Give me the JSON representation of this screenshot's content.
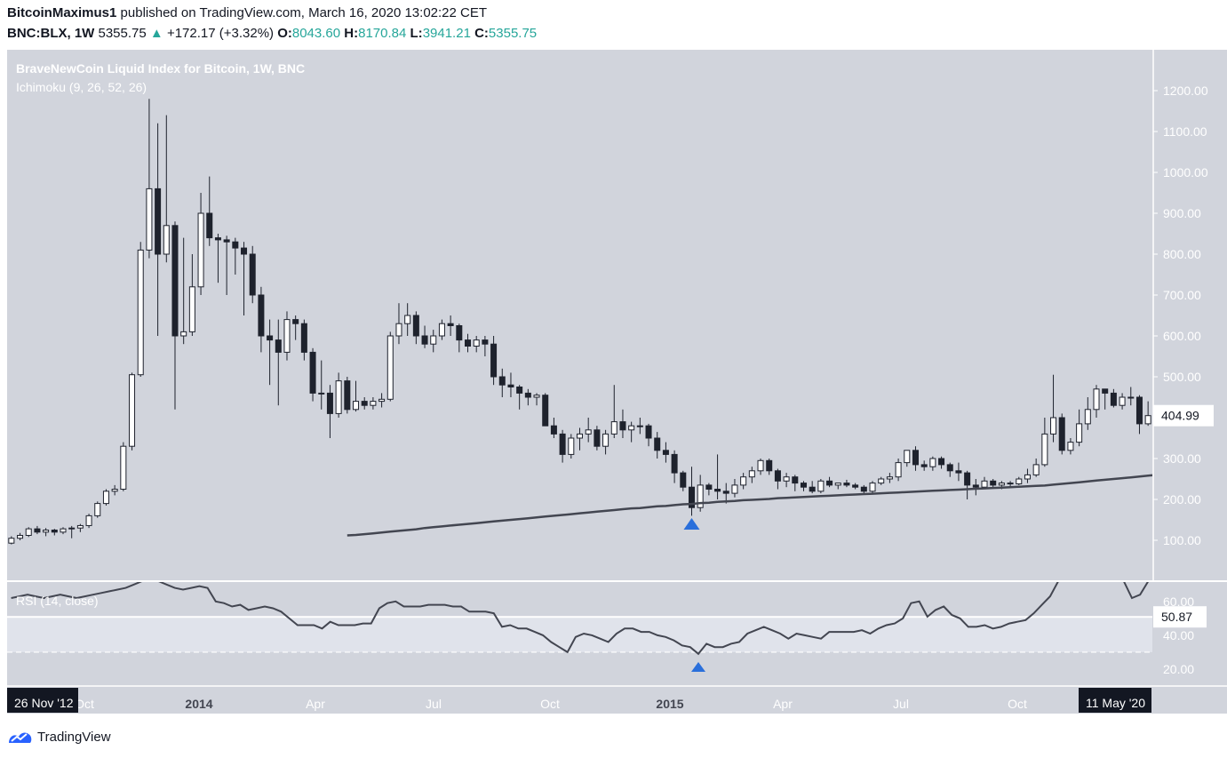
{
  "header": {
    "author": "BitcoinMaximus1",
    "published_text": "published on TradingView.com, March 16, 2020 13:02:22 CET",
    "symbol": "BNC:BLX, 1W",
    "last": "5355.75",
    "change": "+172.17 (+3.32%)",
    "o_label": "O:",
    "o_value": "8043.60",
    "h_label": "H:",
    "h_value": "8170.84",
    "l_label": "L:",
    "l_value": "3941.21",
    "c_label": "C:",
    "c_value": "5355.75"
  },
  "branding": {
    "name": "TradingView"
  },
  "colors": {
    "background": "#d1d4dc",
    "bull_body": "#ffffff",
    "bear_body": "#1e222d",
    "wick": "#1e222d",
    "line": "#434651",
    "marker": "#2a6fdb",
    "axis_text": "#ffffff",
    "header_accent": "#26a69a"
  },
  "chart_data": [
    {
      "type": "candlestick",
      "title": "BraveNewCoin Liquid Index for Bitcoin, 1W, BNC",
      "indicator_label": "Ichimoku (9, 26, 52, 26)",
      "ylim": [
        0,
        1300
      ],
      "y_ticks": [
        100,
        200,
        300,
        400,
        500,
        600,
        700,
        800,
        900,
        1000,
        1100,
        1200
      ],
      "y_tick_labels": [
        "100.00",
        "200.00",
        "300.00",
        "400.00",
        "500.00",
        "600.00",
        "700.00",
        "800.00",
        "900.00",
        "1000.00",
        "1100.00",
        "1200.00"
      ],
      "price_label": "404.99",
      "price_value": 404.99,
      "x_range": [
        "26 Nov '12",
        "11 May '20"
      ],
      "x_tick_labels": [
        "Oct",
        "2014",
        "Apr",
        "Jul",
        "Oct",
        "2015",
        "Apr",
        "Jul",
        "Oct"
      ],
      "x_bold_ticks": [
        "2014",
        "2015"
      ],
      "x_start_label": "26 Nov '12",
      "x_end_label": "11 May '20",
      "candles": [
        [
          93,
          110,
          90,
          105
        ],
        [
          105,
          118,
          100,
          112
        ],
        [
          112,
          132,
          108,
          128
        ],
        [
          128,
          135,
          115,
          120
        ],
        [
          120,
          130,
          110,
          125
        ],
        [
          125,
          128,
          112,
          120
        ],
        [
          120,
          132,
          115,
          128
        ],
        [
          128,
          135,
          105,
          130
        ],
        [
          130,
          140,
          120,
          136
        ],
        [
          136,
          165,
          130,
          160
        ],
        [
          160,
          195,
          155,
          190
        ],
        [
          190,
          225,
          185,
          220
        ],
        [
          220,
          235,
          210,
          225
        ],
        [
          225,
          340,
          220,
          330
        ],
        [
          330,
          510,
          320,
          505
        ],
        [
          505,
          830,
          500,
          810
        ],
        [
          810,
          1180,
          790,
          960
        ],
        [
          960,
          1120,
          600,
          800
        ],
        [
          800,
          1140,
          780,
          870
        ],
        [
          870,
          880,
          420,
          600
        ],
        [
          600,
          840,
          580,
          610
        ],
        [
          610,
          800,
          600,
          720
        ],
        [
          720,
          950,
          700,
          900
        ],
        [
          900,
          990,
          820,
          840
        ],
        [
          840,
          850,
          730,
          835
        ],
        [
          835,
          845,
          700,
          830
        ],
        [
          830,
          840,
          750,
          815
        ],
        [
          815,
          830,
          650,
          800
        ],
        [
          800,
          820,
          680,
          700
        ],
        [
          700,
          720,
          560,
          600
        ],
        [
          600,
          640,
          480,
          590
        ],
        [
          590,
          640,
          430,
          560
        ],
        [
          560,
          660,
          540,
          640
        ],
        [
          640,
          650,
          590,
          630
        ],
        [
          630,
          640,
          540,
          560
        ],
        [
          560,
          570,
          440,
          460
        ],
        [
          460,
          540,
          420,
          460
        ],
        [
          460,
          480,
          350,
          410
        ],
        [
          410,
          510,
          400,
          490
        ],
        [
          490,
          500,
          410,
          420
        ],
        [
          420,
          490,
          415,
          440
        ],
        [
          440,
          450,
          420,
          430
        ],
        [
          430,
          450,
          420,
          440
        ],
        [
          440,
          460,
          425,
          445
        ],
        [
          445,
          610,
          440,
          600
        ],
        [
          600,
          680,
          580,
          630
        ],
        [
          630,
          680,
          600,
          650
        ],
        [
          650,
          660,
          580,
          600
        ],
        [
          600,
          625,
          570,
          580
        ],
        [
          580,
          615,
          560,
          600
        ],
        [
          600,
          640,
          590,
          630
        ],
        [
          630,
          650,
          600,
          625
        ],
        [
          625,
          630,
          560,
          590
        ],
        [
          590,
          605,
          560,
          575
        ],
        [
          575,
          600,
          560,
          590
        ],
        [
          590,
          600,
          550,
          580
        ],
        [
          580,
          600,
          480,
          500
        ],
        [
          500,
          520,
          450,
          480
        ],
        [
          480,
          510,
          450,
          475
        ],
        [
          475,
          480,
          420,
          460
        ],
        [
          460,
          470,
          430,
          450
        ],
        [
          450,
          460,
          430,
          455
        ],
        [
          455,
          460,
          380,
          380
        ],
        [
          380,
          400,
          350,
          360
        ],
        [
          360,
          370,
          290,
          310
        ],
        [
          310,
          360,
          300,
          350
        ],
        [
          350,
          375,
          320,
          360
        ],
        [
          360,
          400,
          340,
          370
        ],
        [
          370,
          380,
          320,
          330
        ],
        [
          330,
          370,
          310,
          360
        ],
        [
          360,
          480,
          350,
          390
        ],
        [
          390,
          420,
          350,
          370
        ],
        [
          370,
          390,
          340,
          380
        ],
        [
          380,
          400,
          360,
          380
        ],
        [
          380,
          385,
          330,
          350
        ],
        [
          350,
          365,
          300,
          320
        ],
        [
          320,
          340,
          290,
          310
        ],
        [
          310,
          320,
          240,
          265
        ],
        [
          265,
          270,
          220,
          230
        ],
        [
          230,
          280,
          160,
          180
        ],
        [
          180,
          260,
          170,
          235
        ],
        [
          235,
          240,
          210,
          225
        ],
        [
          225,
          310,
          200,
          220
        ],
        [
          220,
          240,
          190,
          215
        ],
        [
          215,
          250,
          205,
          235
        ],
        [
          235,
          265,
          225,
          255
        ],
        [
          255,
          280,
          240,
          270
        ],
        [
          270,
          300,
          260,
          295
        ],
        [
          295,
          300,
          260,
          270
        ],
        [
          270,
          275,
          225,
          245
        ],
        [
          245,
          265,
          230,
          255
        ],
        [
          255,
          260,
          220,
          240
        ],
        [
          240,
          245,
          220,
          230
        ],
        [
          230,
          245,
          215,
          220
        ],
        [
          220,
          250,
          215,
          245
        ],
        [
          245,
          255,
          230,
          235
        ],
        [
          235,
          240,
          225,
          240
        ],
        [
          240,
          248,
          230,
          235
        ],
        [
          235,
          240,
          225,
          230
        ],
        [
          230,
          235,
          215,
          220
        ],
        [
          220,
          245,
          215,
          240
        ],
        [
          240,
          255,
          235,
          250
        ],
        [
          250,
          265,
          240,
          255
        ],
        [
          255,
          300,
          245,
          290
        ],
        [
          290,
          320,
          280,
          320
        ],
        [
          320,
          330,
          270,
          285
        ],
        [
          285,
          295,
          270,
          280
        ],
        [
          280,
          305,
          270,
          300
        ],
        [
          300,
          305,
          275,
          285
        ],
        [
          285,
          290,
          255,
          270
        ],
        [
          270,
          290,
          245,
          265
        ],
        [
          265,
          270,
          200,
          235
        ],
        [
          235,
          250,
          210,
          230
        ],
        [
          230,
          255,
          225,
          245
        ],
        [
          245,
          250,
          230,
          235
        ],
        [
          235,
          245,
          225,
          240
        ],
        [
          240,
          245,
          230,
          238
        ],
        [
          238,
          255,
          235,
          250
        ],
        [
          250,
          275,
          240,
          260
        ],
        [
          260,
          300,
          255,
          285
        ],
        [
          285,
          400,
          280,
          360
        ],
        [
          360,
          505,
          340,
          400
        ],
        [
          400,
          410,
          310,
          320
        ],
        [
          320,
          350,
          310,
          340
        ],
        [
          340,
          420,
          330,
          385
        ],
        [
          385,
          450,
          370,
          420
        ],
        [
          420,
          480,
          400,
          470
        ],
        [
          470,
          470,
          420,
          460
        ],
        [
          460,
          470,
          425,
          430
        ],
        [
          430,
          460,
          420,
          450
        ],
        [
          450,
          475,
          430,
          450
        ],
        [
          450,
          455,
          360,
          385
        ],
        [
          385,
          440,
          380,
          405
        ]
      ],
      "ichimoku_line": [
        [
          0,
          0
        ],
        [
          0,
          0
        ],
        [
          0,
          0
        ],
        [
          0,
          0
        ],
        [
          0,
          0
        ],
        [
          0,
          0
        ],
        [
          0,
          0
        ],
        [
          0,
          0
        ],
        [
          0,
          0
        ],
        [
          0,
          0
        ],
        [
          0,
          0
        ],
        [
          0,
          0
        ],
        [
          0,
          0
        ],
        [
          0,
          0
        ],
        [
          0,
          0
        ],
        [
          0,
          0
        ],
        [
          0,
          0
        ],
        [
          0,
          0
        ],
        [
          0,
          0
        ],
        [
          0,
          0
        ],
        [
          0,
          0
        ],
        [
          0,
          0
        ],
        [
          0,
          0
        ],
        [
          0,
          0
        ],
        [
          0,
          0
        ],
        [
          0,
          0
        ],
        [
          0,
          0
        ],
        [
          0,
          0
        ],
        [
          0,
          0
        ],
        [
          0,
          0
        ],
        [
          0,
          0
        ],
        [
          0,
          0
        ],
        [
          0,
          0
        ],
        [
          0,
          0
        ],
        [
          0,
          0
        ],
        [
          0,
          0
        ],
        [
          0,
          0
        ],
        [
          0,
          0
        ],
        [
          0,
          0
        ],
        [
          0,
          0
        ]
      ],
      "baseline": {
        "start_index": 39,
        "values": [
          112,
          113,
          115,
          117,
          119,
          121,
          123,
          125,
          127,
          130,
          132,
          134,
          136,
          138,
          140,
          142,
          144,
          146,
          148,
          150,
          152,
          154,
          156,
          158,
          160,
          162,
          164,
          166,
          168,
          170,
          172,
          174,
          176,
          178,
          179,
          181,
          183,
          184,
          186,
          188,
          189,
          191,
          192,
          194,
          195,
          196,
          198,
          199,
          200,
          201,
          203,
          204,
          205,
          206,
          207,
          208,
          209,
          210,
          211,
          212,
          213,
          214,
          215,
          216,
          217,
          218,
          219,
          220,
          221,
          222,
          223,
          224,
          225,
          226,
          227,
          228,
          229,
          230,
          231,
          232,
          233,
          234,
          236,
          238,
          240,
          242,
          244,
          246,
          248,
          250,
          252,
          254,
          256,
          258,
          260,
          262,
          264,
          266
        ]
      },
      "markers": [
        {
          "index": 79,
          "shape": "triangle-up"
        }
      ]
    },
    {
      "type": "line",
      "title": "RSI (14, close)",
      "ylim": [
        10,
        72
      ],
      "y_ticks": [
        20,
        40,
        60
      ],
      "y_tick_labels": [
        "20.00",
        "40.00",
        "60.00"
      ],
      "value_label": "50.87",
      "value": 50.87,
      "overbought_line": 50.87,
      "oversold_line": 30,
      "values": [
        62,
        63,
        64,
        63,
        62,
        63,
        64,
        63,
        62,
        63,
        64,
        65,
        66,
        67,
        68,
        70,
        72,
        72,
        72,
        70,
        68,
        67,
        68,
        69,
        68,
        60,
        59,
        57,
        58,
        55,
        56,
        57,
        56,
        54,
        50,
        46,
        46,
        46,
        44,
        48,
        46,
        46,
        46,
        47,
        47,
        56,
        59,
        60,
        57,
        57,
        57,
        58,
        58,
        58,
        57,
        57,
        54,
        54,
        54,
        53,
        45,
        46,
        44,
        44,
        42,
        40,
        36,
        33,
        30,
        39,
        41,
        40,
        38,
        36,
        41,
        44,
        44,
        42,
        42,
        40,
        39,
        37,
        34,
        33,
        29,
        35,
        33,
        33,
        35,
        36,
        41,
        43,
        45,
        43,
        41,
        38,
        41,
        40,
        39,
        38,
        42,
        42,
        42,
        42,
        43,
        41,
        44,
        46,
        47,
        50,
        59,
        60,
        51,
        55,
        57,
        52,
        50,
        45,
        45,
        46,
        44,
        45,
        47,
        48,
        49,
        53,
        58,
        63,
        72,
        72,
        72,
        72,
        72,
        72,
        72,
        72,
        72,
        62,
        64,
        72
      ],
      "marker": {
        "index": 84,
        "shape": "triangle-up"
      }
    }
  ]
}
